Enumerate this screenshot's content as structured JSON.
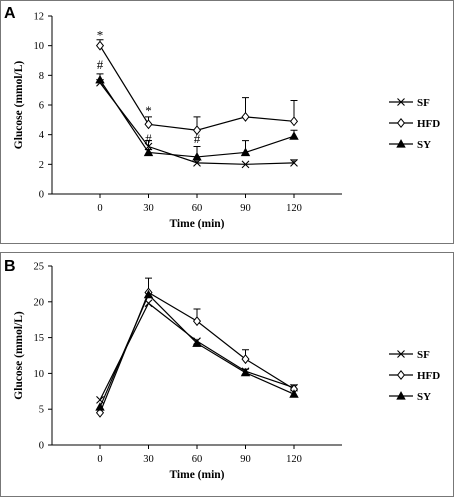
{
  "chart_data": [
    {
      "panel": "A",
      "type": "line",
      "xlabel": "Time (min)",
      "ylabel": "Glucose (mmol/L)",
      "x": [
        0,
        30,
        60,
        90,
        120
      ],
      "ylim": [
        0,
        12
      ],
      "yticks": [
        0,
        2,
        4,
        6,
        8,
        10,
        12
      ],
      "grid": false,
      "legend_position": "right",
      "series": [
        {
          "name": "SF",
          "marker": "x",
          "values": [
            7.5,
            3.2,
            2.1,
            2.0,
            2.1
          ],
          "errors": [
            0,
            0.4,
            0.2,
            0,
            0.2
          ]
        },
        {
          "name": "HFD",
          "marker": "open-diamond",
          "values": [
            10.0,
            4.7,
            4.3,
            5.2,
            4.9
          ],
          "errors": [
            0.4,
            0.5,
            0.9,
            1.3,
            1.4
          ]
        },
        {
          "name": "SY",
          "marker": "filled-triangle",
          "values": [
            7.7,
            2.8,
            2.5,
            2.8,
            3.9
          ],
          "errors": [
            0.4,
            0.2,
            0.7,
            0.8,
            0.4
          ]
        }
      ],
      "annotations": [
        {
          "x": 0,
          "y": 10.7,
          "text": "*"
        },
        {
          "x": 0,
          "y": 8.7,
          "text": "#"
        },
        {
          "x": 30,
          "y": 5.6,
          "text": "*"
        },
        {
          "x": 30,
          "y": 3.7,
          "text": "#"
        },
        {
          "x": 60,
          "y": 3.7,
          "text": "#"
        }
      ]
    },
    {
      "panel": "B",
      "type": "line",
      "xlabel": "Time (min)",
      "ylabel": "Glucose (mmol/L)",
      "x": [
        0,
        30,
        60,
        90,
        120
      ],
      "ylim": [
        0,
        25
      ],
      "yticks": [
        0,
        5,
        10,
        15,
        20,
        25
      ],
      "grid": false,
      "legend_position": "right",
      "series": [
        {
          "name": "SF",
          "marker": "x",
          "values": [
            6.3,
            19.8,
            14.5,
            10.3,
            8.0
          ],
          "errors": [
            0,
            0,
            0,
            0,
            0
          ]
        },
        {
          "name": "HFD",
          "marker": "open-diamond",
          "values": [
            4.5,
            21.3,
            17.3,
            12.0,
            7.8
          ],
          "errors": [
            0,
            2.0,
            1.7,
            1.3,
            0.6
          ]
        },
        {
          "name": "SY",
          "marker": "filled-triangle",
          "values": [
            5.3,
            21.0,
            14.2,
            10.1,
            7.1
          ],
          "errors": [
            0,
            0,
            0,
            0.5,
            0
          ]
        }
      ]
    }
  ]
}
